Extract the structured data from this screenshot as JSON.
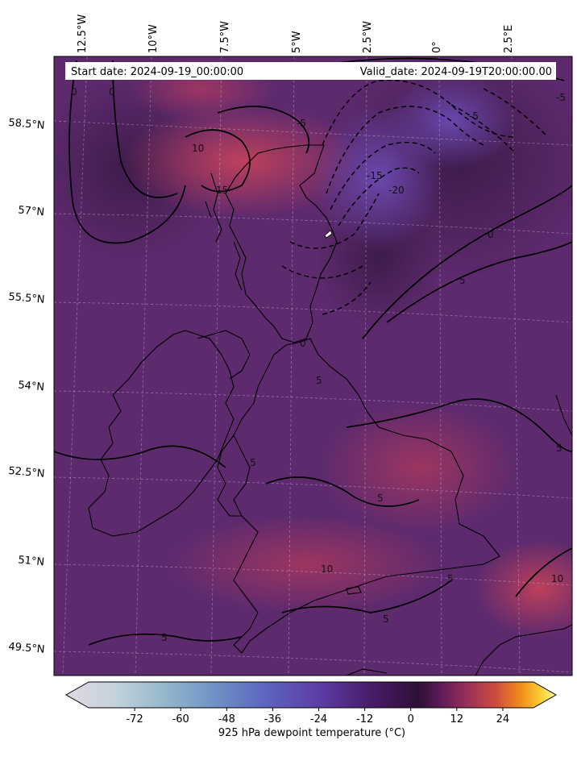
{
  "map": {
    "header_start": "Start date: 2024-09-19_00:00:00",
    "header_valid": "Valid_date: 2024-09-19T20:00:00.00",
    "lon_labels": [
      "12.5°W",
      "10°W",
      "7.5°W",
      "5°W",
      "2.5°W",
      "0°",
      "2.5°E"
    ],
    "lat_labels": [
      "58.5°N",
      "57°N",
      "55.5°N",
      "54°N",
      "52.5°N",
      "51°N",
      "49.5°N"
    ],
    "contour_labels": [
      "0",
      "0",
      "-5",
      "10",
      "15",
      "-15",
      "-20",
      "-5",
      "0",
      "5",
      "-5",
      "0",
      "5",
      "5",
      "5",
      "5",
      "10",
      "5",
      "5",
      "5",
      "10"
    ]
  },
  "colorbar": {
    "label": "925 hPa dewpoint temperature ($^\\circ$C)",
    "label_display": "925 hPa dewpoint temperature (°C)",
    "ticks": [
      "-72",
      "-60",
      "-48",
      "-36",
      "-24",
      "-12",
      "0",
      "12",
      "24"
    ],
    "tick_values": [
      -72,
      -60,
      -48,
      -36,
      -24,
      -12,
      0,
      12,
      24
    ],
    "range": [
      -84,
      32
    ],
    "extend": "both",
    "colormap": "twilight-like (light grey → blue → purple → dark purple → red → orange → yellow)"
  },
  "colors": {
    "field_base": "#5e2a6e",
    "warm": "#b53a5a",
    "cool": "#6a4aa8",
    "dark": "#3b1b4a"
  }
}
